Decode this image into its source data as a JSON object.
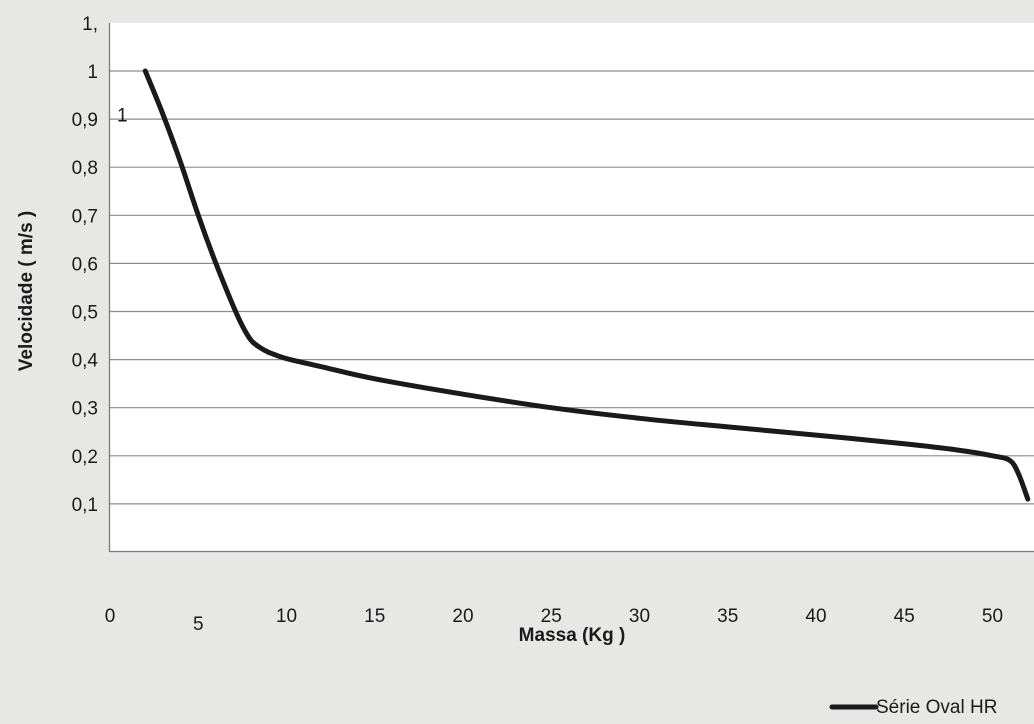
{
  "chart_data": {
    "type": "line",
    "xlabel": "Massa (Kg )",
    "ylabel": "Velocidade ( m/s )",
    "xlim": [
      0,
      52
    ],
    "ylim": [
      0,
      1.1
    ],
    "x_ticks": [
      {
        "value": 0,
        "label": "0"
      },
      {
        "value": 5,
        "label": "5"
      },
      {
        "value": 10,
        "label": "10"
      },
      {
        "value": 15,
        "label": "15"
      },
      {
        "value": 20,
        "label": "20"
      },
      {
        "value": 25,
        "label": "25"
      },
      {
        "value": 30,
        "label": "30"
      },
      {
        "value": 35,
        "label": "35"
      },
      {
        "value": 40,
        "label": "40"
      },
      {
        "value": 45,
        "label": "45"
      },
      {
        "value": 50,
        "label": "50"
      }
    ],
    "y_ticks": [
      {
        "value": 0.1,
        "label": "0,1"
      },
      {
        "value": 0.2,
        "label": "0,2"
      },
      {
        "value": 0.3,
        "label": "0,3"
      },
      {
        "value": 0.4,
        "label": "0,4"
      },
      {
        "value": 0.5,
        "label": "0,5"
      },
      {
        "value": 0.6,
        "label": "0,6"
      },
      {
        "value": 0.7,
        "label": "0,7"
      },
      {
        "value": 0.8,
        "label": "0,8"
      },
      {
        "value": 0.9,
        "label": "0,9"
      },
      {
        "value": 1.0,
        "label": "1"
      },
      {
        "value": 1.1,
        "label": "1,"
      }
    ],
    "annotations": [
      {
        "text": "1",
        "x": 0.4,
        "y": 0.91
      }
    ],
    "grid": "horizontal",
    "legend_position": "bottom-right",
    "series": [
      {
        "name": "Série Oval HR",
        "color": "#1a1a1a",
        "x": [
          2,
          3,
          4,
          5,
          6,
          7,
          7.5,
          8,
          8.5,
          9,
          10,
          12,
          15,
          20,
          25,
          30,
          35,
          40,
          45,
          48,
          50,
          51,
          51.5,
          52
        ],
        "y": [
          1.0,
          0.91,
          0.81,
          0.7,
          0.6,
          0.51,
          0.47,
          0.44,
          0.425,
          0.415,
          0.402,
          0.385,
          0.36,
          0.328,
          0.3,
          0.278,
          0.26,
          0.243,
          0.225,
          0.212,
          0.2,
          0.19,
          0.16,
          0.11
        ]
      }
    ]
  }
}
